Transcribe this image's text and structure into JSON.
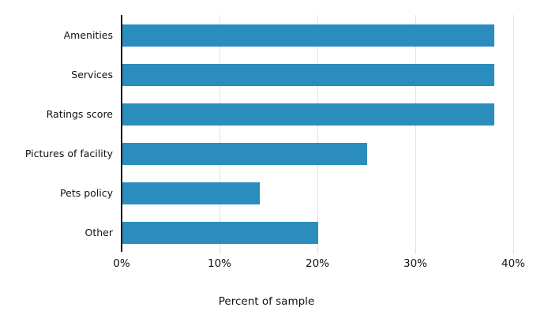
{
  "chart_data": {
    "type": "bar",
    "orientation": "horizontal",
    "title": "",
    "categories": [
      "Amenities",
      "Services",
      "Ratings score",
      "Pictures of facility",
      "Pets policy",
      "Other"
    ],
    "values": [
      38,
      38,
      38,
      25,
      14,
      20
    ],
    "value_unit": "%",
    "xlabel": "Percent of sample",
    "ylabel": "",
    "xlim": [
      0,
      40
    ],
    "xticks": [
      0,
      10,
      20,
      30,
      40
    ],
    "xtick_labels": [
      "0%",
      "10%",
      "20%",
      "30%",
      "40%"
    ],
    "grid": true,
    "gridline_ticks": [
      10,
      20,
      30,
      40
    ],
    "legend_position": "none",
    "bar_color": "#2b8cbe",
    "gridline_color": "#e0e0e0",
    "axis_line_color": "#111111",
    "text_color": "#111111",
    "background_color": "#ffffff"
  }
}
